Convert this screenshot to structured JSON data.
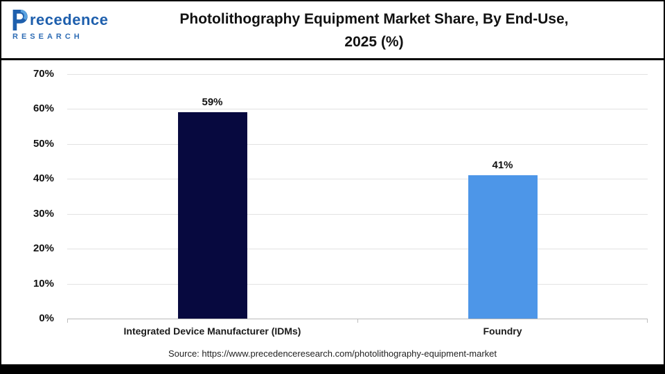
{
  "header": {
    "logo": {
      "brand": "recedence",
      "sub": "RESEARCH"
    },
    "title_line1": "Photolithography Equipment Market Share, By End-Use,",
    "title_line2": "2025 (%)"
  },
  "chart_data": {
    "type": "bar",
    "title": "Photolithography Equipment Market Share, By End-Use, 2025 (%)",
    "categories": [
      "Integrated Device Manufacturer (IDMs)",
      "Foundry"
    ],
    "values": [
      59,
      41
    ],
    "value_labels": [
      "59%",
      "41%"
    ],
    "xlabel": "",
    "ylabel": "",
    "ylim": [
      0,
      70
    ],
    "yticks": [
      "70%",
      "60%",
      "50%",
      "40%",
      "30%",
      "20%",
      "10%",
      "0%"
    ],
    "bar_colors": [
      "#07093f",
      "#4d96e8"
    ],
    "grid": true,
    "legend": "none"
  },
  "footer": {
    "source": "Source: https://www.precedenceresearch.com/photolithography-equipment-market"
  }
}
